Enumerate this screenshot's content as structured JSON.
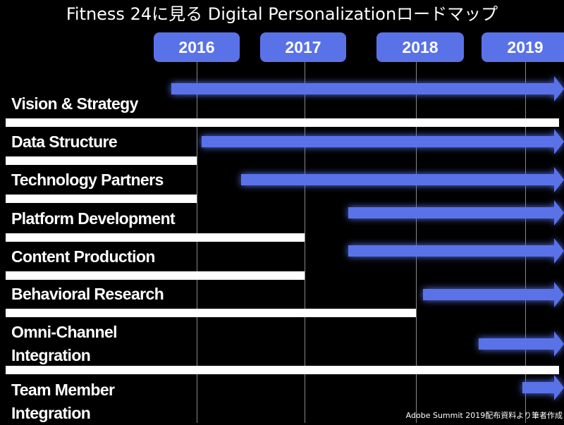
{
  "title": "Fitness 24に見る Digital Personalizationロードマップ",
  "years": [
    "2016",
    "2017",
    "2018",
    "2019"
  ],
  "rows": [
    {
      "label": "Vision & Strategy"
    },
    {
      "label": "Data Structure"
    },
    {
      "label": "Technology Partners"
    },
    {
      "label": "Platform Development"
    },
    {
      "label": "Content Production"
    },
    {
      "label": "Behavioral Research"
    },
    {
      "label": "Omni-Channel\nIntegration"
    },
    {
      "label": "Team Member\nIntegration"
    }
  ],
  "credit": "Adobe Summit 2019配布資料より筆者作成",
  "colors": {
    "background": "#000000",
    "accent": "#5A72E8",
    "bar": "#FFFFFF",
    "grid": "#888888"
  }
}
